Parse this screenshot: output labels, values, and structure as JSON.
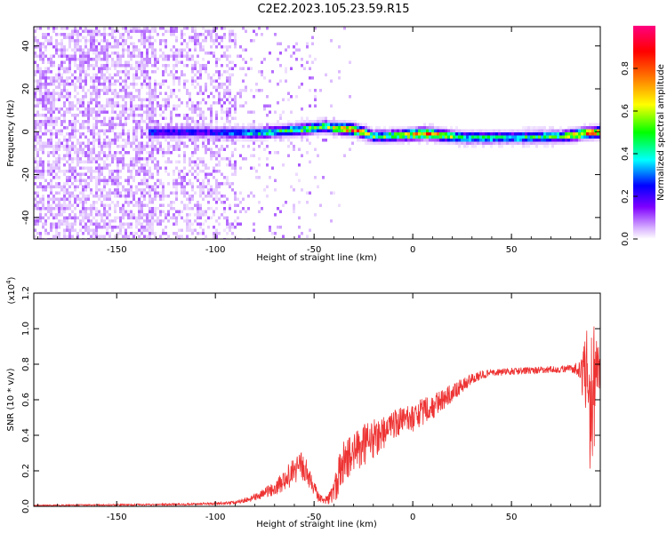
{
  "figure": {
    "title": "C2E2.2023.105.23.59.R15"
  },
  "chart_data": [
    {
      "type": "heatmap",
      "title": "C2E2.2023.105.23.59.R15",
      "xlabel": "Height of straight line (km)",
      "ylabel": "Frequency (Hz)",
      "xlim": [
        -192,
        95
      ],
      "ylim": [
        -50,
        49
      ],
      "xticks": [
        -150,
        -100,
        -50,
        0,
        50
      ],
      "yticks": [
        -40,
        -20,
        0,
        20,
        40
      ],
      "colorbar": {
        "label": "Normalized spectral amplitude",
        "range": [
          0,
          1
        ],
        "ticks": [
          0.0,
          0.2,
          0.4,
          0.6,
          0.8
        ],
        "colormap": [
          "#ffffff",
          "#d9b3ff",
          "#7f00ff",
          "#0000ff",
          "#00ffff",
          "#00ff00",
          "#ffff00",
          "#ff7f00",
          "#ff0000",
          "#ff0080"
        ]
      },
      "ridge": [
        {
          "x": -130,
          "y": 0.5,
          "amp": 0.35
        },
        {
          "x": -105,
          "y": 0.5,
          "amp": 0.3
        },
        {
          "x": -80,
          "y": 0.0,
          "amp": 0.45
        },
        {
          "x": -60,
          "y": 1.5,
          "amp": 0.55
        },
        {
          "x": -45,
          "y": 3.0,
          "amp": 0.6
        },
        {
          "x": -30,
          "y": 1.5,
          "amp": 0.85
        },
        {
          "x": -20,
          "y": -1.5,
          "amp": 0.55
        },
        {
          "x": -5,
          "y": -1.0,
          "amp": 0.6
        },
        {
          "x": 5,
          "y": 0.0,
          "amp": 0.85
        },
        {
          "x": 25,
          "y": -2.0,
          "amp": 0.5
        },
        {
          "x": 50,
          "y": -2.0,
          "amp": 0.5
        },
        {
          "x": 75,
          "y": -1.5,
          "amp": 0.55
        },
        {
          "x": 88,
          "y": 0.0,
          "amp": 0.8
        },
        {
          "x": 95,
          "y": 0.5,
          "amp": 0.75
        }
      ]
    },
    {
      "type": "line",
      "xlabel": "Height of straight line (km)",
      "ylabel": "SNR (10 * v/v)",
      "yscale_label": "(x10",
      "yscale_exp": "4",
      "yscale_close": ")",
      "xlim": [
        -192,
        95
      ],
      "ylim": [
        0,
        1.2
      ],
      "xticks": [
        -150,
        -100,
        -50,
        0,
        50
      ],
      "yticks": [
        0.0,
        0.2,
        0.4,
        0.6,
        0.8,
        1.0,
        1.2
      ],
      "series": [
        {
          "color": "#ee3333",
          "x": [
            -192,
            -160,
            -130,
            -110,
            -100,
            -90,
            -80,
            -70,
            -65,
            -60,
            -55,
            -52,
            -48,
            -45,
            -42,
            -38,
            -35,
            -30,
            -25,
            -20,
            -15,
            -10,
            -5,
            0,
            5,
            10,
            15,
            20,
            25,
            30,
            35,
            40,
            50,
            60,
            70,
            80,
            85,
            88,
            90,
            92,
            95
          ],
          "y": [
            0.005,
            0.008,
            0.01,
            0.012,
            0.015,
            0.02,
            0.05,
            0.1,
            0.15,
            0.2,
            0.22,
            0.15,
            0.06,
            0.03,
            0.05,
            0.15,
            0.25,
            0.3,
            0.34,
            0.38,
            0.42,
            0.45,
            0.48,
            0.5,
            0.53,
            0.56,
            0.6,
            0.64,
            0.68,
            0.72,
            0.74,
            0.75,
            0.76,
            0.765,
            0.77,
            0.775,
            0.77,
            0.7,
            0.6,
            0.7,
            0.75
          ],
          "noise": [
            0.003,
            0.004,
            0.005,
            0.006,
            0.008,
            0.01,
            0.02,
            0.04,
            0.06,
            0.08,
            0.1,
            0.05,
            0.03,
            0.015,
            0.04,
            0.12,
            0.12,
            0.12,
            0.12,
            0.12,
            0.1,
            0.09,
            0.08,
            0.08,
            0.08,
            0.07,
            0.06,
            0.05,
            0.04,
            0.03,
            0.025,
            0.02,
            0.02,
            0.02,
            0.02,
            0.02,
            0.05,
            0.3,
            0.45,
            0.4,
            0.15
          ]
        }
      ]
    }
  ]
}
